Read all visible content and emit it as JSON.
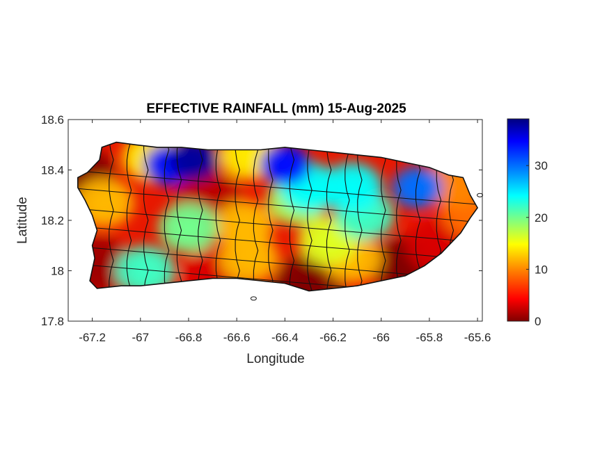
{
  "chart_data": {
    "type": "heatmap",
    "title": "EFFECTIVE RAINFALL (mm) 15-Aug-2025",
    "xlabel": "Longitude",
    "ylabel": "Latitude",
    "xlim": [
      -67.3,
      -65.58
    ],
    "ylim": [
      17.8,
      18.6
    ],
    "xticks": [
      -67.2,
      -67,
      -66.8,
      -66.6,
      -66.4,
      -66.2,
      -66,
      -65.8,
      -65.6
    ],
    "xtick_labels": [
      "-67.2",
      "-67",
      "-66.8",
      "-66.6",
      "-66.4",
      "-66.2",
      "-66",
      "-65.8",
      "-65.6"
    ],
    "yticks": [
      17.8,
      18,
      18.2,
      18.4,
      18.6
    ],
    "ytick_labels": [
      "17.8",
      "18",
      "18.2",
      "18.4",
      "18.6"
    ],
    "colorbar": {
      "colormap": "jet (reversed)",
      "range": [
        0,
        39
      ],
      "ticks": [
        0,
        10,
        20,
        30
      ],
      "tick_labels": [
        "0",
        "10",
        "20",
        "30"
      ],
      "colors": [
        "#800000",
        "#ff0000",
        "#ff8000",
        "#ffff00",
        "#80ff80",
        "#00ffff",
        "#0080ff",
        "#0000ff",
        "#000080"
      ]
    },
    "grid": false,
    "rainfall_hotspots": [
      {
        "lon": -66.78,
        "lat": 18.44,
        "value": 38
      },
      {
        "lon": -66.88,
        "lat": 18.42,
        "value": 34
      },
      {
        "lon": -66.4,
        "lat": 18.42,
        "value": 34
      },
      {
        "lon": -66.3,
        "lat": 18.33,
        "value": 24
      },
      {
        "lon": -66.12,
        "lat": 18.33,
        "value": 24
      },
      {
        "lon": -66.07,
        "lat": 18.22,
        "value": 22
      },
      {
        "lon": -65.85,
        "lat": 18.33,
        "value": 30
      },
      {
        "lon": -66.35,
        "lat": 18.28,
        "value": 18
      },
      {
        "lon": -66.8,
        "lat": 18.17,
        "value": 20
      },
      {
        "lon": -66.98,
        "lat": 18.0,
        "value": 22
      },
      {
        "lon": -67.15,
        "lat": 18.27,
        "value": 12
      },
      {
        "lon": -66.95,
        "lat": 18.45,
        "value": 14
      },
      {
        "lon": -66.55,
        "lat": 18.46,
        "value": 14
      },
      {
        "lon": -66.57,
        "lat": 18.18,
        "value": 12
      },
      {
        "lon": -66.55,
        "lat": 18.05,
        "value": 12
      },
      {
        "lon": -66.12,
        "lat": 18.05,
        "value": 12
      },
      {
        "lon": -65.7,
        "lat": 18.35,
        "value": 10
      },
      {
        "lon": -65.63,
        "lat": 18.23,
        "value": 9
      },
      {
        "lon": -66.22,
        "lat": 18.12,
        "value": 16
      },
      {
        "lon": -67.25,
        "lat": 18.38,
        "value": 0
      },
      {
        "lon": -67.18,
        "lat": 18.02,
        "value": 1
      },
      {
        "lon": -66.72,
        "lat": 18.28,
        "value": 2
      },
      {
        "lon": -66.3,
        "lat": 17.95,
        "value": 0
      },
      {
        "lon": -65.9,
        "lat": 18.02,
        "value": 0
      },
      {
        "lon": -66.68,
        "lat": 17.98,
        "value": 3
      },
      {
        "lon": -65.75,
        "lat": 18.1,
        "value": 3
      }
    ]
  }
}
